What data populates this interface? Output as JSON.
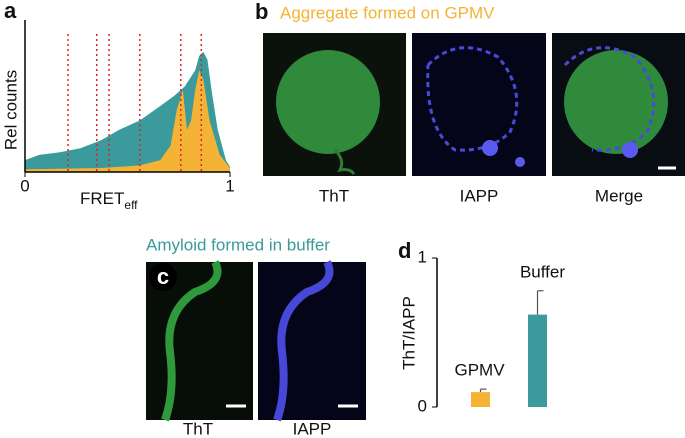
{
  "panel_labels": {
    "a": "a",
    "b": "b",
    "c": "c",
    "d": "d"
  },
  "panel_b": {
    "title": "Aggregate formed on GPMV",
    "captions": [
      "ThT",
      "IAPP",
      "Merge"
    ]
  },
  "panel_c": {
    "title": "Amyloid formed in buffer",
    "captions": [
      "ThT",
      "IAPP"
    ]
  },
  "chart_data": [
    {
      "type": "area",
      "xlabel": "FRET",
      "xlabel_sub": "eff",
      "ylabel": "Rel counts",
      "xlim": [
        0,
        1
      ],
      "ylim": [
        0,
        1
      ],
      "xticks": [
        0,
        1
      ],
      "markers": [
        0.21,
        0.35,
        0.41,
        0.56,
        0.76,
        0.86
      ],
      "marker_color": "#d62728",
      "series": [
        {
          "color": "#3a9a9c",
          "x": [
            0,
            0.07,
            0.17,
            0.27,
            0.37,
            0.46,
            0.56,
            0.66,
            0.73,
            0.78,
            0.83,
            0.85,
            0.87,
            0.89,
            0.91,
            0.94,
            0.98,
            1
          ],
          "values": [
            0.09,
            0.13,
            0.15,
            0.18,
            0.24,
            0.32,
            0.39,
            0.5,
            0.58,
            0.65,
            0.77,
            0.88,
            0.91,
            0.85,
            0.62,
            0.32,
            0.09,
            0.04
          ]
        },
        {
          "color": "#f5b335",
          "x": [
            0,
            0.37,
            0.56,
            0.66,
            0.71,
            0.74,
            0.77,
            0.79,
            0.81,
            0.83,
            0.85,
            0.87,
            0.9,
            0.95,
            1
          ],
          "values": [
            0.02,
            0.03,
            0.05,
            0.09,
            0.2,
            0.47,
            0.62,
            0.32,
            0.39,
            0.62,
            0.77,
            0.7,
            0.39,
            0.13,
            0.03
          ]
        }
      ]
    },
    {
      "type": "bar",
      "ylabel": "ThT/IAPP",
      "ylim": [
        0,
        1
      ],
      "yticks": [
        0,
        1
      ],
      "categories": [
        "GPMV",
        "Buffer"
      ],
      "values": [
        0.1,
        0.62
      ],
      "errors": [
        0.02,
        0.16
      ],
      "colors": [
        "#f5b335",
        "#3a9a9c"
      ]
    }
  ]
}
